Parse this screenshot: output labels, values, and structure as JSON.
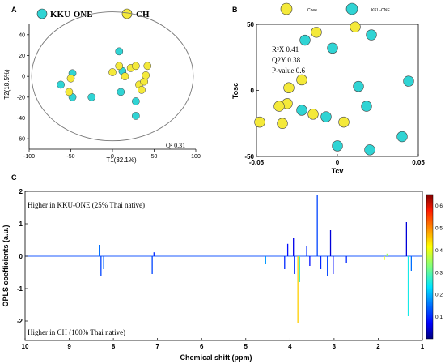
{
  "colors": {
    "kku": "#30d4d4",
    "ch": "#f4e93a",
    "outline": "#333333",
    "axis": "#000000"
  },
  "chart_data": [
    {
      "panel": "A",
      "type": "scatter",
      "title": "",
      "xlabel": "T1(32.1%)",
      "ylabel": "T2(18.5%)",
      "xlim": [
        -100,
        100
      ],
      "ylim": [
        -70,
        50
      ],
      "xticks": [
        -100,
        -50,
        0,
        50,
        100
      ],
      "yticks": [
        -60,
        -40,
        -20,
        0,
        20,
        40
      ],
      "legend_position": "top",
      "annotation": "Q² 0.31",
      "ellipse": {
        "rx": 97,
        "ry": 62
      },
      "series": [
        {
          "name": "KKU-ONE",
          "color_key": "kku",
          "points": [
            [
              -62,
              -8
            ],
            [
              -48,
              3
            ],
            [
              -48,
              -20
            ],
            [
              -25,
              -20
            ],
            [
              8,
              24
            ],
            [
              12,
              5
            ],
            [
              10,
              -15
            ],
            [
              28,
              -24
            ],
            [
              28,
              -38
            ]
          ]
        },
        {
          "name": "CH",
          "color_key": "ch",
          "points": [
            [
              -52,
              -15
            ],
            [
              -50,
              -2
            ],
            [
              0,
              4
            ],
            [
              8,
              10
            ],
            [
              15,
              0
            ],
            [
              22,
              8
            ],
            [
              28,
              10
            ],
            [
              32,
              -8
            ],
            [
              35,
              -13
            ],
            [
              38,
              -5
            ],
            [
              40,
              1
            ],
            [
              42,
              10
            ]
          ]
        }
      ]
    },
    {
      "panel": "B",
      "type": "scatter",
      "title": "",
      "xlabel": "Tcv",
      "ylabel": "Tosc",
      "xlim": [
        -0.05,
        0.05
      ],
      "ylim": [
        -50,
        50
      ],
      "xticks": [
        -0.05,
        0,
        0.05
      ],
      "yticks": [
        -50,
        0,
        50
      ],
      "legend_position": "top",
      "stats": [
        "R²X 0.41",
        "Q2Y 0.38",
        "P-value 0.6"
      ],
      "series": [
        {
          "name": "KKU-ONE",
          "color_key": "kku",
          "points": [
            [
              -0.02,
              38
            ],
            [
              -0.003,
              32
            ],
            [
              0.0,
              -42
            ],
            [
              0.013,
              3
            ],
            [
              0.018,
              -12
            ],
            [
              0.02,
              -45
            ],
            [
              0.021,
              42
            ],
            [
              0.04,
              -35
            ],
            [
              0.044,
              7
            ],
            [
              -0.022,
              -15
            ],
            [
              -0.007,
              -20
            ]
          ]
        },
        {
          "name": "Chee",
          "color_key": "ch",
          "points": [
            [
              -0.013,
              44
            ],
            [
              0.011,
              48
            ],
            [
              -0.022,
              8
            ],
            [
              -0.03,
              2
            ],
            [
              -0.031,
              -10
            ],
            [
              -0.036,
              -12
            ],
            [
              -0.034,
              -25
            ],
            [
              -0.048,
              -24
            ],
            [
              -0.015,
              -18
            ],
            [
              0.004,
              -24
            ]
          ]
        }
      ]
    },
    {
      "panel": "C",
      "type": "line",
      "title": "",
      "xlabel": "Chemical shift (ppm)",
      "ylabel": "OPLS coefficients (a.u.)",
      "xlim": [
        10,
        1
      ],
      "x_reversed": true,
      "ylim": [
        -2.6,
        2
      ],
      "xticks": [
        10,
        9,
        8,
        7,
        6,
        5,
        4,
        3,
        2,
        1
      ],
      "yticks": [
        -2,
        -1,
        0,
        1,
        2
      ],
      "annotation_top": "Higher in KKU-ONE (25% Thai native)",
      "annotation_bottom": "Higher in CH (100% Thai native)",
      "colorbar": {
        "min": 0,
        "max": 0.6,
        "ticks": [
          0.1,
          0.2,
          0.3,
          0.4,
          0.5,
          0.6
        ]
      },
      "peaks": [
        {
          "ppm": 8.32,
          "y": 0.35,
          "c": 0.15
        },
        {
          "ppm": 8.28,
          "y": -0.6,
          "c": 0.12
        },
        {
          "ppm": 8.22,
          "y": -0.4,
          "c": 0.14
        },
        {
          "ppm": 7.12,
          "y": -0.55,
          "c": 0.12
        },
        {
          "ppm": 7.08,
          "y": 0.12,
          "c": 0.1
        },
        {
          "ppm": 4.55,
          "y": -0.25,
          "c": 0.18
        },
        {
          "ppm": 4.12,
          "y": -0.4,
          "c": 0.1
        },
        {
          "ppm": 4.05,
          "y": 0.38,
          "c": 0.08
        },
        {
          "ppm": 3.92,
          "y": 0.55,
          "c": 0.06
        },
        {
          "ppm": 3.9,
          "y": -0.55,
          "c": 0.1
        },
        {
          "ppm": 3.82,
          "y": -2.05,
          "c": 0.45
        },
        {
          "ppm": 3.78,
          "y": -0.8,
          "c": 0.28
        },
        {
          "ppm": 3.62,
          "y": 0.3,
          "c": 0.1
        },
        {
          "ppm": 3.55,
          "y": -0.3,
          "c": 0.08
        },
        {
          "ppm": 3.38,
          "y": 1.9,
          "c": 0.12
        },
        {
          "ppm": 3.3,
          "y": -0.4,
          "c": 0.1
        },
        {
          "ppm": 3.15,
          "y": -0.6,
          "c": 0.12
        },
        {
          "ppm": 3.08,
          "y": 0.8,
          "c": 0.05
        },
        {
          "ppm": 3.02,
          "y": -0.55,
          "c": 0.08
        },
        {
          "ppm": 2.72,
          "y": -0.2,
          "c": 0.1
        },
        {
          "ppm": 1.86,
          "y": -0.12,
          "c": 0.4
        },
        {
          "ppm": 1.8,
          "y": 0.08,
          "c": 0.35
        },
        {
          "ppm": 1.36,
          "y": 1.05,
          "c": 0.05
        },
        {
          "ppm": 1.32,
          "y": -1.85,
          "c": 0.25
        },
        {
          "ppm": 1.25,
          "y": -0.45,
          "c": 0.15
        }
      ]
    }
  ],
  "panels": {
    "a": "A",
    "b": "B",
    "c": "C"
  },
  "legend_a": {
    "kku": "KKU-ONE",
    "ch": "CH"
  },
  "legend_b": {
    "ch": "Chee",
    "kku": "KKU-ONE"
  }
}
